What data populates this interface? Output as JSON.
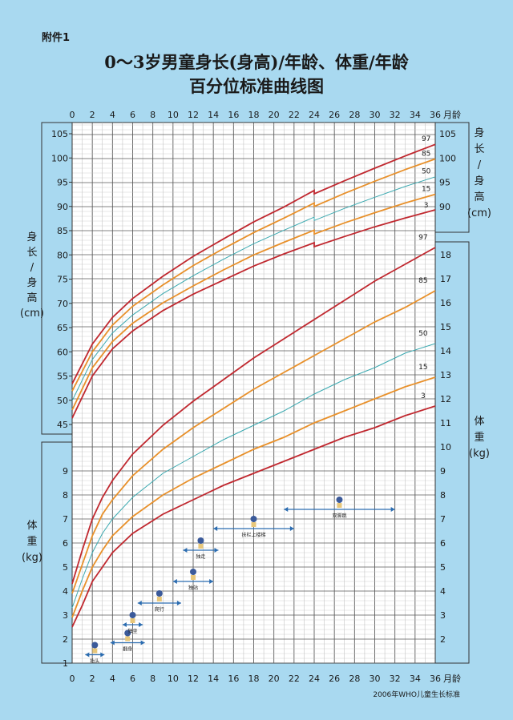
{
  "header": {
    "attachment": "附件1",
    "title_line1": "0～3岁男童身长(身高)/年龄、体重/年龄",
    "title_line2": "百分位标准曲线图"
  },
  "source": "2006年WHO儿童生长标准",
  "chart_data": {
    "type": "line",
    "x": {
      "label": "月龄",
      "range": [
        0,
        36
      ],
      "ticks": [
        0,
        2,
        4,
        6,
        8,
        10,
        12,
        14,
        16,
        18,
        20,
        22,
        24,
        26,
        28,
        30,
        32,
        34,
        36
      ]
    },
    "length_axis": {
      "label": [
        "身",
        "长",
        "/",
        "身",
        "高",
        "(cm)"
      ],
      "range": [
        45,
        105
      ],
      "left_ticks": [
        45,
        50,
        55,
        60,
        65,
        70,
        75,
        80,
        85,
        90,
        95,
        100,
        105
      ],
      "right_ticks": [
        90,
        95,
        100,
        105
      ]
    },
    "weight_axis": {
      "label": [
        "体",
        "重",
        "(kg)"
      ],
      "range": [
        1,
        18
      ],
      "left_ticks": [
        1,
        2,
        3,
        4,
        5,
        6,
        7,
        8,
        9
      ],
      "right_ticks": [
        2,
        3,
        4,
        5,
        6,
        7,
        8,
        9,
        10,
        11,
        12,
        13,
        14,
        15,
        16,
        17,
        18
      ]
    },
    "series_colors": {
      "97": "#c0282f",
      "85": "#e8902a",
      "50": "#3aa9b0",
      "15": "#e8902a",
      "3": "#c0282f"
    },
    "length_series": [
      {
        "name": "97",
        "points": [
          [
            0,
            53.4
          ],
          [
            2,
            61.6
          ],
          [
            4,
            67.1
          ],
          [
            6,
            71.0
          ],
          [
            9,
            75.6
          ],
          [
            12,
            79.7
          ],
          [
            15,
            83.3
          ],
          [
            18,
            86.8
          ],
          [
            21,
            89.9
          ],
          [
            24,
            93.3
          ],
          [
            24,
            92.6
          ],
          [
            27,
            95.3
          ],
          [
            30,
            97.9
          ],
          [
            33,
            100.4
          ],
          [
            36,
            102.8
          ]
        ]
      },
      {
        "name": "85",
        "points": [
          [
            0,
            51.9
          ],
          [
            2,
            60.0
          ],
          [
            4,
            65.5
          ],
          [
            6,
            69.4
          ],
          [
            9,
            73.8
          ],
          [
            12,
            77.8
          ],
          [
            15,
            81.3
          ],
          [
            18,
            84.6
          ],
          [
            21,
            87.6
          ],
          [
            24,
            90.7
          ],
          [
            24,
            90.0
          ],
          [
            27,
            92.7
          ],
          [
            30,
            95.2
          ],
          [
            33,
            97.6
          ],
          [
            36,
            99.8
          ]
        ]
      },
      {
        "name": "50",
        "points": [
          [
            0,
            49.9
          ],
          [
            2,
            58.4
          ],
          [
            4,
            63.9
          ],
          [
            6,
            67.6
          ],
          [
            9,
            72.0
          ],
          [
            12,
            75.7
          ],
          [
            15,
            79.1
          ],
          [
            18,
            82.3
          ],
          [
            21,
            85.1
          ],
          [
            24,
            87.8
          ],
          [
            24,
            87.1
          ],
          [
            27,
            89.6
          ],
          [
            30,
            91.9
          ],
          [
            33,
            94.1
          ],
          [
            36,
            96.1
          ]
        ]
      },
      {
        "name": "15",
        "points": [
          [
            0,
            48.0
          ],
          [
            2,
            56.7
          ],
          [
            4,
            62.1
          ],
          [
            6,
            65.9
          ],
          [
            9,
            70.1
          ],
          [
            12,
            73.6
          ],
          [
            15,
            76.9
          ],
          [
            18,
            80.0
          ],
          [
            21,
            82.6
          ],
          [
            24,
            85.1
          ],
          [
            24,
            84.3
          ],
          [
            27,
            86.6
          ],
          [
            30,
            88.7
          ],
          [
            33,
            90.7
          ],
          [
            36,
            92.5
          ]
        ]
      },
      {
        "name": "3",
        "points": [
          [
            0,
            46.3
          ],
          [
            2,
            55.0
          ],
          [
            4,
            60.6
          ],
          [
            6,
            64.3
          ],
          [
            9,
            68.5
          ],
          [
            12,
            71.9
          ],
          [
            15,
            74.8
          ],
          [
            18,
            77.7
          ],
          [
            21,
            80.2
          ],
          [
            24,
            82.5
          ],
          [
            24,
            81.7
          ],
          [
            27,
            83.8
          ],
          [
            30,
            85.8
          ],
          [
            33,
            87.6
          ],
          [
            36,
            89.3
          ]
        ]
      }
    ],
    "weight_series": [
      {
        "name": "97",
        "points": [
          [
            0,
            4.3
          ],
          [
            1,
            5.7
          ],
          [
            2,
            7.0
          ],
          [
            3,
            7.9
          ],
          [
            4,
            8.6
          ],
          [
            6,
            9.7
          ],
          [
            9,
            10.9
          ],
          [
            12,
            11.9
          ],
          [
            15,
            12.8
          ],
          [
            18,
            13.7
          ],
          [
            21,
            14.5
          ],
          [
            24,
            15.3
          ],
          [
            27,
            16.1
          ],
          [
            30,
            16.9
          ],
          [
            33,
            17.6
          ],
          [
            36,
            18.3
          ]
        ]
      },
      {
        "name": "85",
        "points": [
          [
            0,
            3.9
          ],
          [
            1,
            5.1
          ],
          [
            2,
            6.3
          ],
          [
            3,
            7.2
          ],
          [
            4,
            7.8
          ],
          [
            6,
            8.8
          ],
          [
            9,
            9.9
          ],
          [
            12,
            10.8
          ],
          [
            15,
            11.6
          ],
          [
            18,
            12.4
          ],
          [
            21,
            13.1
          ],
          [
            24,
            13.8
          ],
          [
            27,
            14.5
          ],
          [
            30,
            15.2
          ],
          [
            33,
            15.8
          ],
          [
            36,
            16.5
          ]
        ]
      },
      {
        "name": "50",
        "points": [
          [
            0,
            3.3
          ],
          [
            1,
            4.5
          ],
          [
            2,
            5.6
          ],
          [
            3,
            6.4
          ],
          [
            4,
            7.0
          ],
          [
            6,
            7.9
          ],
          [
            9,
            8.9
          ],
          [
            12,
            9.6
          ],
          [
            15,
            10.3
          ],
          [
            18,
            10.9
          ],
          [
            21,
            11.5
          ],
          [
            24,
            12.2
          ],
          [
            27,
            12.8
          ],
          [
            30,
            13.3
          ],
          [
            33,
            13.9
          ],
          [
            36,
            14.3
          ]
        ]
      },
      {
        "name": "15",
        "points": [
          [
            0,
            2.9
          ],
          [
            1,
            4.0
          ],
          [
            2,
            5.0
          ],
          [
            3,
            5.7
          ],
          [
            4,
            6.3
          ],
          [
            6,
            7.1
          ],
          [
            9,
            8.0
          ],
          [
            12,
            8.7
          ],
          [
            15,
            9.3
          ],
          [
            18,
            9.9
          ],
          [
            21,
            10.4
          ],
          [
            24,
            11.0
          ],
          [
            27,
            11.5
          ],
          [
            30,
            12.0
          ],
          [
            33,
            12.5
          ],
          [
            36,
            12.9
          ]
        ]
      },
      {
        "name": "3",
        "points": [
          [
            0,
            2.5
          ],
          [
            1,
            3.4
          ],
          [
            2,
            4.4
          ],
          [
            3,
            5.0
          ],
          [
            4,
            5.6
          ],
          [
            6,
            6.4
          ],
          [
            9,
            7.2
          ],
          [
            12,
            7.8
          ],
          [
            15,
            8.4
          ],
          [
            18,
            8.9
          ],
          [
            21,
            9.4
          ],
          [
            24,
            9.9
          ],
          [
            27,
            10.4
          ],
          [
            30,
            10.8
          ],
          [
            33,
            11.3
          ],
          [
            36,
            11.7
          ]
        ]
      }
    ],
    "milestones": [
      {
        "label": "抬头",
        "from": 1.3,
        "to": 3.2,
        "level": 1.35
      },
      {
        "label": "翻身",
        "from": 3.8,
        "to": 7.2,
        "level": 1.85
      },
      {
        "label": "独坐",
        "from": 5.0,
        "to": 7.0,
        "level": 2.6
      },
      {
        "label": "爬行",
        "from": 6.5,
        "to": 10.8,
        "level": 3.5
      },
      {
        "label": "独站",
        "from": 10.0,
        "to": 14.0,
        "level": 4.4
      },
      {
        "label": "独走",
        "from": 11.0,
        "to": 14.5,
        "level": 5.7
      },
      {
        "label": "扶栏上楼梯",
        "from": 14.0,
        "to": 22.0,
        "level": 6.6
      },
      {
        "label": "双脚跳",
        "from": 21.0,
        "to": 32.0,
        "level": 7.4
      }
    ]
  }
}
